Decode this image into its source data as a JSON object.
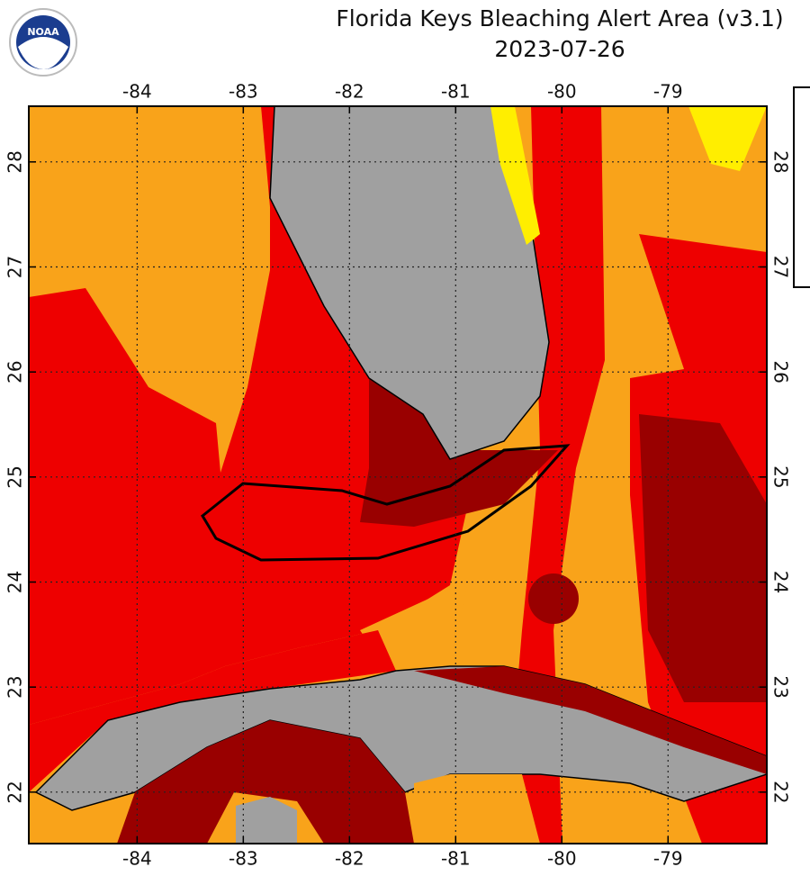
{
  "header": {
    "title": "Florida Keys Bleaching Alert Area (v3.1)",
    "date": "2023-07-26",
    "logo_text": "NOAA"
  },
  "map": {
    "xlim": [
      -85.02,
      -78.07
    ],
    "ylim": [
      21.51,
      28.53
    ],
    "xticks": [
      -84,
      -83,
      -82,
      -81,
      -80,
      -79
    ],
    "yticks": [
      22,
      23,
      24,
      25,
      26,
      27,
      28
    ]
  }
}
